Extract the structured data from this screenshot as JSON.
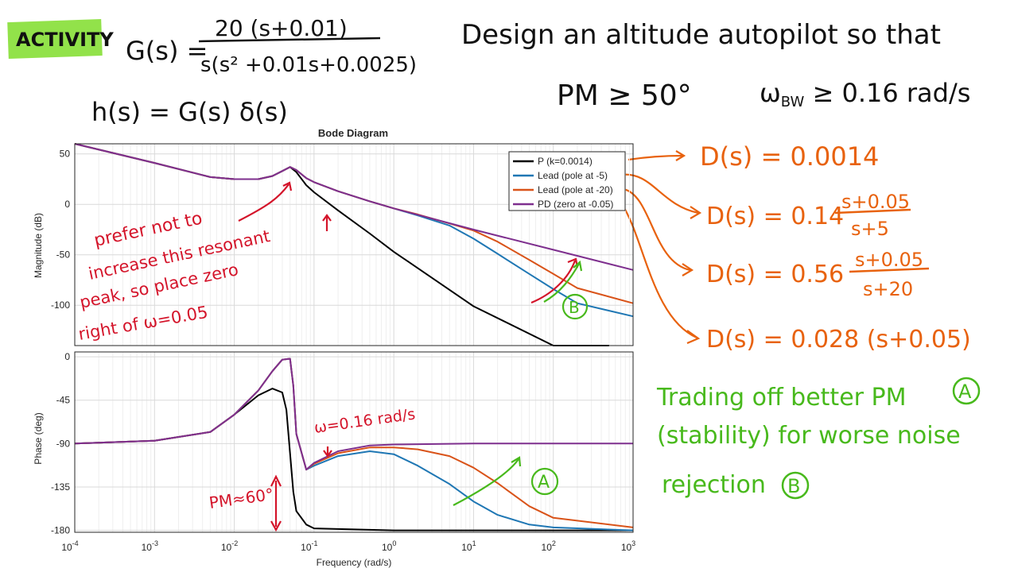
{
  "activity_badge": {
    "label": "ACTIVITY",
    "color": "#92e24a"
  },
  "equations": {
    "g_lhs": "G(s) =",
    "g_numerator": "20 (s+0.01)",
    "g_denominator": "s(s² +0.01s+0.0025)",
    "h_eq": "h(s) = G(s) δ(s)"
  },
  "task": {
    "line1": "Design an altitude autopilot so that",
    "pm_req": "PM ≥ 50°",
    "bw_req": "ω",
    "bw_sub": "BW",
    "bw_rest": " ≥ 0.16 rad/s"
  },
  "controllers": [
    {
      "lhs": "D(s) = 0.0014",
      "num": "",
      "den": ""
    },
    {
      "lhs": "D(s) = 0.14",
      "num": "s+0.05",
      "den": "s+5"
    },
    {
      "lhs": "D(s) = 0.56",
      "num": "s+0.05",
      "den": "s+20"
    },
    {
      "lhs": "D(s) = 0.028 (s+0.05)",
      "num": "",
      "den": ""
    }
  ],
  "notes": {
    "red_note": [
      "prefer not to",
      "increase this resonant",
      "peak, so place zero",
      "right of  ω=0.05"
    ],
    "red_note_emphasis": "not",
    "omega_mark": "ω=0.16 rad/s",
    "pm_mark": "PM≈60°",
    "marker_a": "A",
    "marker_b": "B",
    "green_note": [
      "Trading off better PM",
      "(stability) for worse noise",
      "rejection"
    ]
  },
  "colors": {
    "red": "#d4142a",
    "orange": "#e8620e",
    "green": "#48b91c",
    "black": "#111111"
  },
  "chart_data": {
    "type": "line",
    "title": "Bode Diagram",
    "xlabel": "Frequency  (rad/s)",
    "x_scale": "log",
    "xlim": [
      0.0001,
      1000
    ],
    "x_ticks": [
      0.0001,
      0.001,
      0.01,
      0.1,
      1,
      10,
      100,
      1000
    ],
    "x_tick_labels": [
      {
        "base": "10",
        "exp": "-4"
      },
      {
        "base": "10",
        "exp": "-3"
      },
      {
        "base": "10",
        "exp": "-2"
      },
      {
        "base": "10",
        "exp": "-1"
      },
      {
        "base": "10",
        "exp": "0"
      },
      {
        "base": "10",
        "exp": "1"
      },
      {
        "base": "10",
        "exp": "2"
      },
      {
        "base": "10",
        "exp": "3"
      }
    ],
    "grid": true,
    "legend_position": "top-right",
    "magnitude": {
      "ylabel": "Magnitude (dB)",
      "ylim": [
        -140,
        60
      ],
      "y_ticks": [
        50,
        0,
        -50,
        -100
      ]
    },
    "phase": {
      "ylabel": "Phase (deg)",
      "ylim": [
        -182,
        5
      ],
      "y_ticks": [
        0,
        -45,
        -90,
        -135,
        -180
      ]
    },
    "series": [
      {
        "name": "P (k=0.0014)",
        "color": "#000000",
        "magnitude": [
          [
            0.0001,
            61
          ],
          [
            0.001,
            41
          ],
          [
            0.005,
            27
          ],
          [
            0.01,
            25
          ],
          [
            0.02,
            25
          ],
          [
            0.03,
            28
          ],
          [
            0.04,
            33
          ],
          [
            0.05,
            37
          ],
          [
            0.06,
            32
          ],
          [
            0.08,
            19
          ],
          [
            0.1,
            12
          ],
          [
            0.2,
            -6
          ],
          [
            0.5,
            -29
          ],
          [
            1,
            -47
          ],
          [
            10,
            -101
          ],
          [
            100,
            -140
          ],
          [
            500,
            -140
          ]
        ],
        "phase": [
          [
            0.0001,
            -90
          ],
          [
            0.001,
            -87
          ],
          [
            0.005,
            -78
          ],
          [
            0.01,
            -60
          ],
          [
            0.02,
            -40
          ],
          [
            0.03,
            -33
          ],
          [
            0.04,
            -37
          ],
          [
            0.045,
            -55
          ],
          [
            0.05,
            -100
          ],
          [
            0.055,
            -140
          ],
          [
            0.06,
            -160
          ],
          [
            0.08,
            -174
          ],
          [
            0.1,
            -178
          ],
          [
            1,
            -180
          ],
          [
            1000,
            -180
          ]
        ]
      },
      {
        "name": "Lead (pole at -5)",
        "color": "#1f77b4",
        "magnitude": [
          [
            0.0001,
            61
          ],
          [
            0.001,
            41
          ],
          [
            0.005,
            27
          ],
          [
            0.01,
            25
          ],
          [
            0.02,
            25
          ],
          [
            0.03,
            28
          ],
          [
            0.04,
            33
          ],
          [
            0.05,
            37
          ],
          [
            0.06,
            34
          ],
          [
            0.08,
            26
          ],
          [
            0.1,
            22
          ],
          [
            0.2,
            13
          ],
          [
            0.5,
            3
          ],
          [
            1,
            -4
          ],
          [
            2,
            -11
          ],
          [
            5,
            -21
          ],
          [
            10,
            -34
          ],
          [
            20,
            -49
          ],
          [
            50,
            -69
          ],
          [
            100,
            -84
          ],
          [
            200,
            -98
          ],
          [
            1000,
            -111
          ]
        ],
        "phase": [
          [
            0.0001,
            -90
          ],
          [
            0.001,
            -87
          ],
          [
            0.005,
            -78
          ],
          [
            0.01,
            -60
          ],
          [
            0.02,
            -35
          ],
          [
            0.03,
            -15
          ],
          [
            0.04,
            -3
          ],
          [
            0.05,
            -2
          ],
          [
            0.055,
            -30
          ],
          [
            0.06,
            -80
          ],
          [
            0.08,
            -117
          ],
          [
            0.1,
            -113
          ],
          [
            0.2,
            -103
          ],
          [
            0.5,
            -98
          ],
          [
            1,
            -101
          ],
          [
            2,
            -113
          ],
          [
            5,
            -132
          ],
          [
            10,
            -150
          ],
          [
            20,
            -164
          ],
          [
            50,
            -174
          ],
          [
            100,
            -177
          ],
          [
            1000,
            -180
          ]
        ]
      },
      {
        "name": "Lead (pole at -20)",
        "color": "#d95319",
        "magnitude": [
          [
            0.0001,
            61
          ],
          [
            0.001,
            41
          ],
          [
            0.005,
            27
          ],
          [
            0.01,
            25
          ],
          [
            0.02,
            25
          ],
          [
            0.03,
            28
          ],
          [
            0.04,
            33
          ],
          [
            0.05,
            37
          ],
          [
            0.06,
            34
          ],
          [
            0.08,
            26
          ],
          [
            0.1,
            22
          ],
          [
            0.2,
            13
          ],
          [
            0.5,
            3
          ],
          [
            1,
            -4
          ],
          [
            2,
            -10
          ],
          [
            5,
            -19
          ],
          [
            10,
            -26
          ],
          [
            20,
            -37
          ],
          [
            50,
            -55
          ],
          [
            100,
            -69
          ],
          [
            200,
            -83
          ],
          [
            1000,
            -98
          ]
        ],
        "phase": [
          [
            0.0001,
            -90
          ],
          [
            0.001,
            -87
          ],
          [
            0.005,
            -78
          ],
          [
            0.01,
            -60
          ],
          [
            0.02,
            -35
          ],
          [
            0.03,
            -15
          ],
          [
            0.04,
            -3
          ],
          [
            0.05,
            -2
          ],
          [
            0.055,
            -30
          ],
          [
            0.06,
            -80
          ],
          [
            0.08,
            -117
          ],
          [
            0.1,
            -111
          ],
          [
            0.2,
            -100
          ],
          [
            0.5,
            -94
          ],
          [
            1,
            -94
          ],
          [
            2,
            -96
          ],
          [
            5,
            -103
          ],
          [
            10,
            -115
          ],
          [
            20,
            -131
          ],
          [
            50,
            -155
          ],
          [
            100,
            -167
          ],
          [
            1000,
            -177
          ]
        ]
      },
      {
        "name": "PD (zero at -0.05)",
        "color": "#7e2f8e",
        "magnitude": [
          [
            0.0001,
            61
          ],
          [
            0.001,
            41
          ],
          [
            0.005,
            27
          ],
          [
            0.01,
            25
          ],
          [
            0.02,
            25
          ],
          [
            0.03,
            28
          ],
          [
            0.04,
            33
          ],
          [
            0.05,
            37
          ],
          [
            0.06,
            34
          ],
          [
            0.08,
            26
          ],
          [
            0.1,
            22
          ],
          [
            0.2,
            13
          ],
          [
            0.5,
            3
          ],
          [
            1,
            -4
          ],
          [
            10,
            -25
          ],
          [
            100,
            -45
          ],
          [
            1000,
            -65
          ]
        ],
        "phase": [
          [
            0.0001,
            -90
          ],
          [
            0.001,
            -87
          ],
          [
            0.005,
            -78
          ],
          [
            0.01,
            -60
          ],
          [
            0.02,
            -35
          ],
          [
            0.03,
            -15
          ],
          [
            0.04,
            -3
          ],
          [
            0.05,
            -2
          ],
          [
            0.055,
            -30
          ],
          [
            0.06,
            -80
          ],
          [
            0.08,
            -117
          ],
          [
            0.1,
            -110
          ],
          [
            0.2,
            -98
          ],
          [
            0.5,
            -92
          ],
          [
            1,
            -91
          ],
          [
            10,
            -90
          ],
          [
            1000,
            -90
          ]
        ]
      }
    ]
  }
}
